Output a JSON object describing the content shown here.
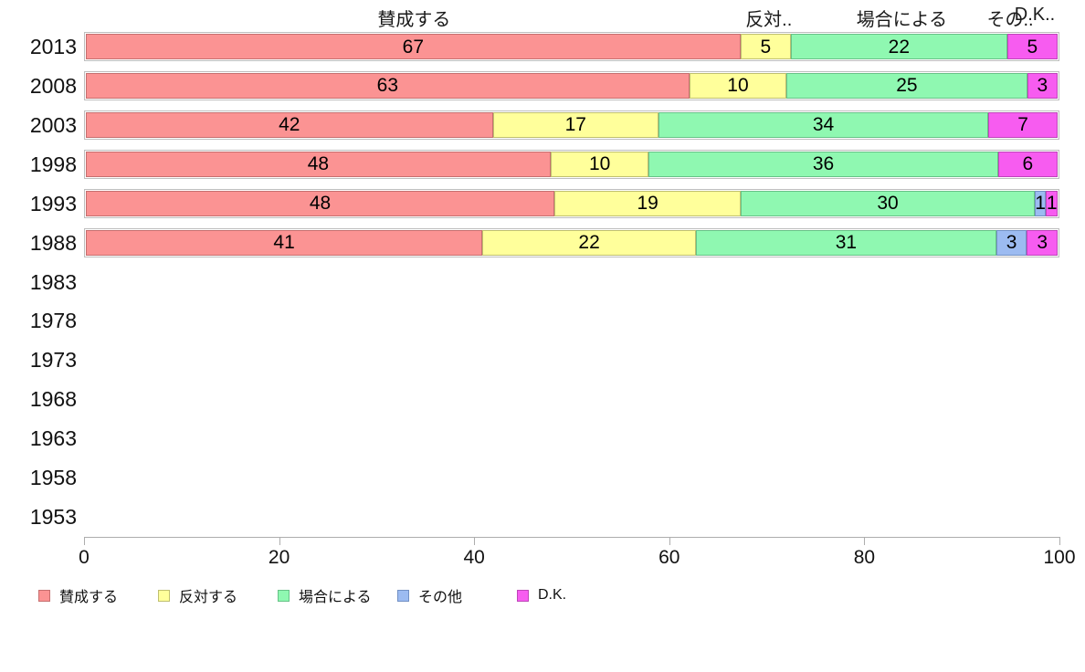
{
  "chart_data": {
    "type": "bar",
    "orientation": "horizontal",
    "stacked": true,
    "title": "",
    "xlabel": "",
    "ylabel": "",
    "grid": false,
    "legend_position": "bottom",
    "x_range": [
      0,
      100
    ],
    "x_axis_ticks": [
      "0",
      "20",
      "40",
      "60",
      "80",
      "100"
    ],
    "categories": [
      "2013",
      "2008",
      "2003",
      "1998",
      "1993",
      "1988",
      "1983",
      "1978",
      "1973",
      "1968",
      "1963",
      "1958",
      "1953"
    ],
    "series": [
      {
        "name": "賛成する",
        "color": "#FB9393",
        "border": "#C66F6F",
        "values": [
          67,
          63,
          42,
          48,
          48,
          41,
          null,
          null,
          null,
          null,
          null,
          null,
          null
        ]
      },
      {
        "name": "反対する",
        "color": "#FFFF9B",
        "border": "#BFBF6F",
        "values": [
          5,
          10,
          17,
          10,
          19,
          22,
          null,
          null,
          null,
          null,
          null,
          null,
          null
        ]
      },
      {
        "name": "場合による",
        "color": "#8FF8B1",
        "border": "#67C287",
        "values": [
          22,
          25,
          34,
          36,
          30,
          31,
          null,
          null,
          null,
          null,
          null,
          null,
          null
        ]
      },
      {
        "name": "その他",
        "color": "#9CBBF1",
        "border": "#7290C4",
        "values": [
          0,
          0,
          0,
          0,
          1,
          3,
          null,
          null,
          null,
          null,
          null,
          null,
          null
        ]
      },
      {
        "name": "D.K.",
        "color": "#F75CF0",
        "border": "#BE45B9",
        "values": [
          5,
          3,
          7,
          6,
          1,
          3,
          null,
          null,
          null,
          null,
          null,
          null,
          null
        ]
      }
    ],
    "header_labels": [
      {
        "text": "賛成する",
        "series_index": 0
      },
      {
        "text": "反対..",
        "series_index": 1
      },
      {
        "text": "場合による",
        "series_index": 2
      },
      {
        "text": "その..",
        "series_index": 3
      },
      {
        "text": "D.K..",
        "series_index": 4
      }
    ]
  }
}
